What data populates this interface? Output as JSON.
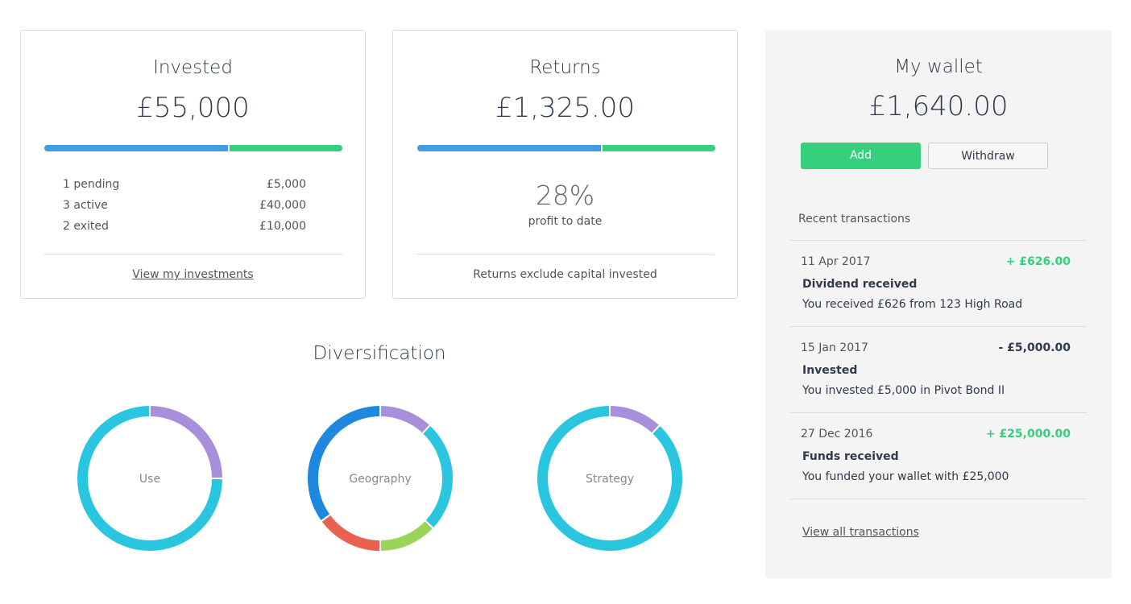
{
  "cards": [
    {
      "title": "Invested",
      "amount": "£55,000",
      "bar": [
        {
          "value": 62,
          "color": "#3f9de1"
        },
        {
          "value": 38,
          "color": "#35cf7d"
        }
      ],
      "rows": [
        [
          "1 pending",
          "£5,000"
        ],
        [
          "3 active",
          "£40,000"
        ],
        [
          "2 exited",
          "£10,000"
        ]
      ],
      "link": "View my investments"
    },
    {
      "title": "Returns",
      "amount": "£1,325.00",
      "bar": [
        {
          "value": 62,
          "color": "#3f9de1"
        },
        {
          "value": 38,
          "color": "#35cf7d"
        }
      ],
      "stat": "28%",
      "stat_label": "profit to date",
      "note": "Returns exclude capital invested"
    }
  ],
  "diversification": {
    "title": "Diversification",
    "charts": [
      {
        "label": "Use",
        "segments": [
          {
            "value": 25,
            "color": "#a88fdc"
          },
          {
            "value": 75,
            "color": "#2ac6df"
          }
        ]
      },
      {
        "label": "Geography",
        "segments": [
          {
            "value": 12,
            "color": "#a88fdc"
          },
          {
            "value": 25,
            "color": "#2ac6df"
          },
          {
            "value": 13,
            "color": "#98d55a"
          },
          {
            "value": 15,
            "color": "#ea6150"
          },
          {
            "value": 35,
            "color": "#1e88de"
          }
        ]
      },
      {
        "label": "Strategy",
        "segments": [
          {
            "value": 12,
            "color": "#a88fdc"
          },
          {
            "value": 88,
            "color": "#2ac6df"
          }
        ]
      }
    ]
  },
  "wallet": {
    "title": "My wallet",
    "balance": "£1,640.00",
    "buttons": [
      "Add",
      "Withdraw"
    ],
    "recent_title": "Recent transactions",
    "transactions": [
      {
        "date": "11 Apr 2017",
        "amount": "+ £626.00",
        "color": "#35cf7d",
        "title": "Dividend received",
        "description": "You received £626 from 123 High Road"
      },
      {
        "date": "15 Jan 2017",
        "amount": "- £5,000.00",
        "color": "#2f3a4a",
        "title": "Invested",
        "description": "You invested £5,000 in Pivot Bond II"
      },
      {
        "date": "27 Dec 2016",
        "amount": "+ £25,000.00",
        "color": "#35cf7d",
        "title": "Funds received",
        "description": "You funded your wallet with £25,000"
      }
    ],
    "link": "View all transactions"
  }
}
